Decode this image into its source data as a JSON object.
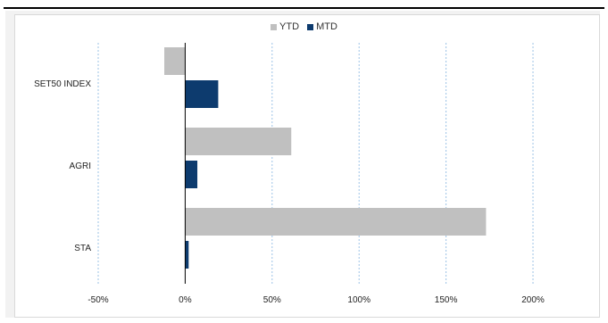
{
  "chart_data": {
    "type": "bar",
    "orientation": "horizontal",
    "categories": [
      "SET50 INDEX",
      "AGRI",
      "STA"
    ],
    "series": [
      {
        "name": "YTD",
        "values": [
          -12,
          61,
          173
        ],
        "color": "#c0c0c0"
      },
      {
        "name": "MTD",
        "values": [
          19,
          7,
          2
        ],
        "color": "#0d3b6e"
      }
    ],
    "xlim": [
      -50,
      200
    ],
    "xticks": [
      "-50%",
      "0%",
      "50%",
      "100%",
      "150%",
      "200%"
    ],
    "xtick_values": [
      -50,
      0,
      50,
      100,
      150,
      200
    ],
    "grid": "vertical dashed",
    "legend_position": "top-center",
    "title": "",
    "xlabel": "",
    "ylabel": ""
  }
}
